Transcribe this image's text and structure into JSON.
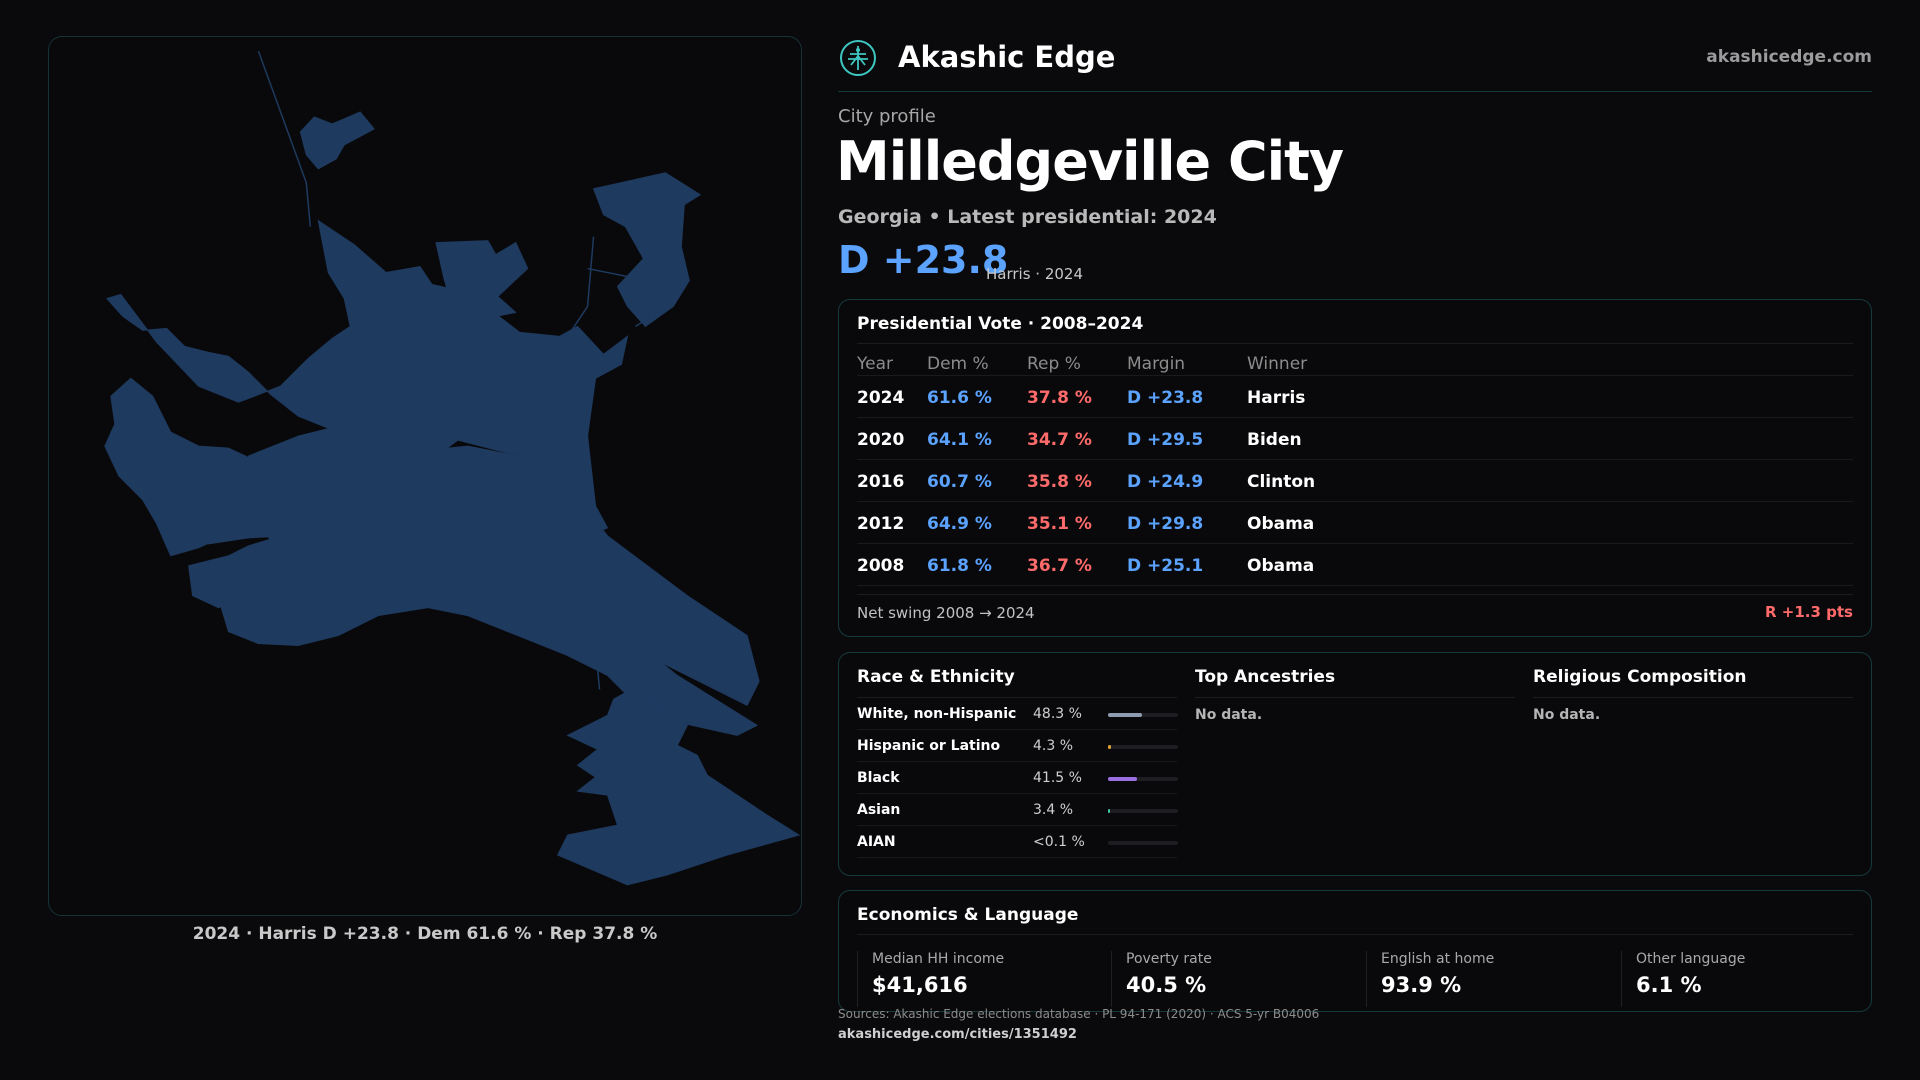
{
  "header": {
    "brand": "Akashic Edge",
    "site": "akashicedge.com",
    "logo_icon": "tree-of-life-icon"
  },
  "profile": {
    "kicker": "City profile",
    "title": "Milledgeville City",
    "subtitle": "Georgia • Latest presidential: 2024",
    "margin": "D +23.8",
    "margin_note": "Harris · 2024"
  },
  "map": {
    "caption": "2024 · Harris D +23.8 · Dem 61.6 % · Rep 37.8 %",
    "fill_color": "#1e3a5f"
  },
  "vote": {
    "title": "Presidential Vote · 2008–2024",
    "headers": {
      "year": "Year",
      "dem": "Dem %",
      "rep": "Rep %",
      "margin": "Margin",
      "winner": "Winner"
    },
    "rows": [
      {
        "year": "2024",
        "dem": "61.6 %",
        "rep": "37.8 %",
        "margin": "D +23.8",
        "winner": "Harris"
      },
      {
        "year": "2020",
        "dem": "64.1 %",
        "rep": "34.7 %",
        "margin": "D +29.5",
        "winner": "Biden"
      },
      {
        "year": "2016",
        "dem": "60.7 %",
        "rep": "35.8 %",
        "margin": "D +24.9",
        "winner": "Clinton"
      },
      {
        "year": "2012",
        "dem": "64.9 %",
        "rep": "35.1 %",
        "margin": "D +29.8",
        "winner": "Obama"
      },
      {
        "year": "2008",
        "dem": "61.8 %",
        "rep": "36.7 %",
        "margin": "D +25.1",
        "winner": "Obama"
      }
    ],
    "swing_label": "Net swing 2008 → 2024",
    "swing_value": "R +1.3 pts"
  },
  "race": {
    "title": "Race & Ethnicity",
    "rows": [
      {
        "label": "White, non-Hispanic",
        "pct": "48.3 %",
        "fraction": 0.483,
        "color": "#8f9bb0"
      },
      {
        "label": "Hispanic or Latino",
        "pct": "4.3 %",
        "fraction": 0.043,
        "color": "#e0a030"
      },
      {
        "label": "Black",
        "pct": "41.5 %",
        "fraction": 0.415,
        "color": "#9b6fe0"
      },
      {
        "label": "Asian",
        "pct": "3.4 %",
        "fraction": 0.034,
        "color": "#3cc8a0"
      },
      {
        "label": "AIAN",
        "pct": "<0.1 %",
        "fraction": 0.0,
        "color": "#888888"
      }
    ]
  },
  "ancestry": {
    "title": "Top Ancestries",
    "empty": "No data."
  },
  "religion": {
    "title": "Religious Composition",
    "empty": "No data."
  },
  "econ": {
    "title": "Economics & Language",
    "cells": [
      {
        "label": "Median HH income",
        "value": "$41,616"
      },
      {
        "label": "Poverty rate",
        "value": "40.5 %"
      },
      {
        "label": "English at home",
        "value": "93.9 %"
      },
      {
        "label": "Other language",
        "value": "6.1 %"
      }
    ]
  },
  "footer": {
    "sources": "Sources: Akashic Edge elections database · PL 94-171 (2020) · ACS 5-yr B04006",
    "url": "akashicedge.com/cities/1351492"
  }
}
